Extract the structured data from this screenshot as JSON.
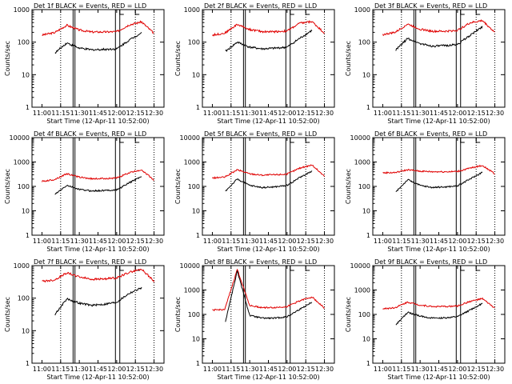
{
  "figure": {
    "xlabel": "Start Time (12-Apr-11 10:52:00)",
    "ylabel": "Counts/sec"
  },
  "axes": {
    "x_ticks": [
      "11:00",
      "11:15",
      "11:30",
      "11:45",
      "12:00",
      "12:15",
      "12:30"
    ],
    "y_ticks": [
      "1",
      "10",
      "100",
      "1000",
      "10000"
    ]
  },
  "colors": {
    "events": "#000000",
    "lld": "#e00000"
  },
  "chart_data": [
    {
      "type": "line",
      "title": "Det 1f BLACK = Events, RED = LLD",
      "xlabel": "Start Time (12-Apr-11 10:52:00)",
      "ylabel": "Counts/sec",
      "y_scale": "log",
      "ylim": [
        1,
        1000
      ],
      "x_minutes": [
        0,
        10,
        20,
        30,
        40,
        50,
        60,
        70,
        80,
        90
      ],
      "series": [
        {
          "name": "LLD",
          "values": [
            165,
            195,
            330,
            235,
            205,
            205,
            210,
            340,
            420,
            185
          ]
        },
        {
          "name": "Events",
          "values": [
            null,
            45,
            95,
            65,
            58,
            60,
            62,
            115,
            195,
            null
          ]
        }
      ]
    },
    {
      "type": "line",
      "title": "Det 2f BLACK = Events, RED = LLD",
      "xlabel": "Start Time (12-Apr-11 10:52:00)",
      "ylabel": "Counts/sec",
      "y_scale": "log",
      "ylim": [
        1,
        1000
      ],
      "x_minutes": [
        0,
        10,
        20,
        30,
        40,
        50,
        60,
        70,
        80,
        90
      ],
      "series": [
        {
          "name": "LLD",
          "values": [
            165,
            190,
            350,
            245,
            210,
            210,
            220,
            380,
            430,
            190
          ]
        },
        {
          "name": "Events",
          "values": [
            null,
            50,
            100,
            70,
            62,
            65,
            70,
            130,
            230,
            null
          ]
        }
      ]
    },
    {
      "type": "line",
      "title": "Det 3f BLACK = Events, RED = LLD",
      "xlabel": "Start Time (12-Apr-11 10:52:00)",
      "ylabel": "Counts/sec",
      "y_scale": "log",
      "ylim": [
        1,
        1000
      ],
      "x_minutes": [
        0,
        10,
        20,
        30,
        40,
        50,
        60,
        70,
        80,
        90
      ],
      "series": [
        {
          "name": "LLD",
          "values": [
            170,
            200,
            360,
            250,
            215,
            215,
            230,
            390,
            460,
            200
          ]
        },
        {
          "name": "Events",
          "values": [
            null,
            55,
            130,
            90,
            75,
            78,
            85,
            160,
            300,
            null
          ]
        }
      ]
    },
    {
      "type": "line",
      "title": "Det 4f BLACK = Events, RED = LLD",
      "xlabel": "Start Time (12-Apr-11 10:52:00)",
      "ylabel": "Counts/sec",
      "y_scale": "log",
      "ylim": [
        1,
        10000
      ],
      "x_minutes": [
        0,
        10,
        20,
        30,
        40,
        50,
        60,
        70,
        80,
        90
      ],
      "series": [
        {
          "name": "LLD",
          "values": [
            160,
            190,
            330,
            240,
            205,
            210,
            220,
            360,
            480,
            180
          ]
        },
        {
          "name": "Events",
          "values": [
            null,
            45,
            110,
            75,
            65,
            68,
            72,
            140,
            260,
            null
          ]
        }
      ]
    },
    {
      "type": "line",
      "title": "Det 5f BLACK = Events, RED = LLD",
      "xlabel": "Start Time (12-Apr-11 10:52:00)",
      "ylabel": "Counts/sec",
      "y_scale": "log",
      "ylim": [
        1,
        10000
      ],
      "x_minutes": [
        0,
        10,
        20,
        30,
        40,
        50,
        60,
        70,
        80,
        90
      ],
      "series": [
        {
          "name": "LLD",
          "values": [
            220,
            240,
            480,
            330,
            290,
            300,
            320,
            560,
            760,
            260
          ]
        },
        {
          "name": "Events",
          "values": [
            null,
            60,
            200,
            110,
            90,
            95,
            110,
            230,
            420,
            null
          ]
        }
      ]
    },
    {
      "type": "line",
      "title": "Det 6f BLACK = Events, RED = LLD",
      "xlabel": "Start Time (12-Apr-11 10:52:00)",
      "ylabel": "Counts/sec",
      "y_scale": "log",
      "ylim": [
        1,
        10000
      ],
      "x_minutes": [
        0,
        10,
        20,
        30,
        40,
        50,
        60,
        70,
        80,
        90
      ],
      "series": [
        {
          "name": "LLD",
          "values": [
            360,
            370,
            480,
            420,
            400,
            400,
            410,
            560,
            720,
            330
          ]
        },
        {
          "name": "Events",
          "values": [
            null,
            55,
            190,
            110,
            90,
            95,
            105,
            200,
            380,
            null
          ]
        }
      ]
    },
    {
      "type": "line",
      "title": "Det 7f BLACK = Events, RED = LLD",
      "xlabel": "Start Time (12-Apr-11 10:52:00)",
      "ylabel": "Counts/sec",
      "y_scale": "log",
      "ylim": [
        1,
        1000
      ],
      "x_minutes": [
        0,
        10,
        20,
        30,
        40,
        50,
        60,
        70,
        80,
        90
      ],
      "series": [
        {
          "name": "LLD",
          "values": [
            330,
            360,
            600,
            450,
            380,
            390,
            420,
            620,
            780,
            330
          ]
        },
        {
          "name": "Events",
          "values": [
            null,
            30,
            95,
            70,
            60,
            65,
            75,
            140,
            210,
            null
          ]
        }
      ]
    },
    {
      "type": "line",
      "title": "Det 8f BLACK = Events, RED = LLD",
      "xlabel": "Start Time (12-Apr-11 10:52:00)",
      "ylabel": "Counts/sec",
      "y_scale": "log",
      "ylim": [
        1,
        10000
      ],
      "x_minutes": [
        0,
        10,
        20,
        30,
        40,
        50,
        60,
        70,
        80,
        90
      ],
      "series": [
        {
          "name": "LLD",
          "values": [
            150,
            160,
            7000,
            230,
            190,
            190,
            210,
            360,
            520,
            180
          ]
        },
        {
          "name": "Events",
          "values": [
            null,
            40,
            6000,
            90,
            70,
            70,
            80,
            160,
            320,
            null
          ]
        }
      ]
    },
    {
      "type": "line",
      "title": "Det 9f BLACK = Events, RED = LLD",
      "xlabel": "Start Time (12-Apr-11 10:52:00)",
      "ylabel": "Counts/sec",
      "y_scale": "log",
      "ylim": [
        1,
        10000
      ],
      "x_minutes": [
        0,
        10,
        20,
        30,
        40,
        50,
        60,
        70,
        80,
        90
      ],
      "series": [
        {
          "name": "LLD",
          "values": [
            170,
            190,
            320,
            240,
            210,
            210,
            220,
            340,
            440,
            180
          ]
        },
        {
          "name": "Events",
          "values": [
            null,
            35,
            120,
            85,
            70,
            72,
            80,
            150,
            280,
            null
          ]
        }
      ]
    }
  ]
}
